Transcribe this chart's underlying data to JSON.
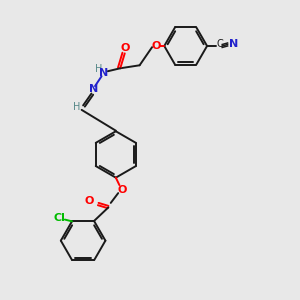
{
  "background_color": "#e8e8e8",
  "bond_color": "#1a1a1a",
  "oxygen_color": "#ff0000",
  "nitrogen_color": "#2222cc",
  "nitrogen_h_color": "#558888",
  "chlorine_color": "#00bb00",
  "figsize": [
    3.0,
    3.0
  ],
  "dpi": 100,
  "xlim": [
    0,
    10
  ],
  "ylim": [
    0,
    10
  ]
}
